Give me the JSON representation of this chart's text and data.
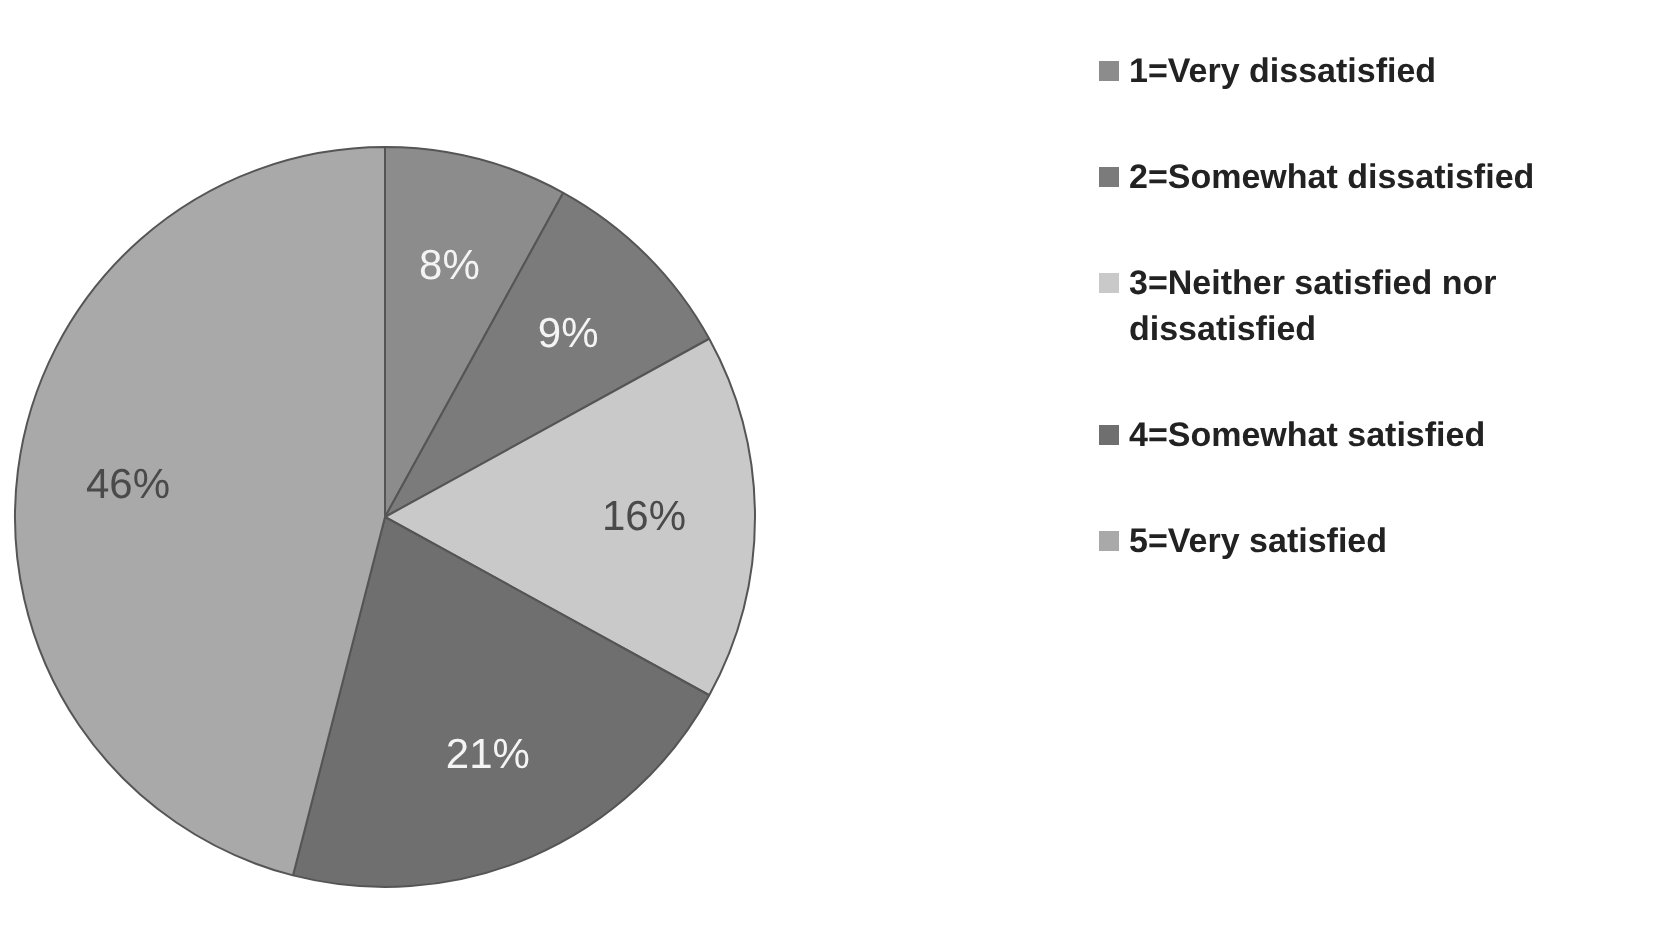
{
  "chart_data": {
    "type": "pie",
    "categories": [
      "1=Very dissatisfied",
      "2=Somewhat dissatisfied",
      "3=Neither satisfied nor dissatisfied",
      "4=Somewhat satisfied",
      "5=Very satisfied"
    ],
    "values": [
      8,
      9,
      16,
      21,
      46
    ],
    "colors": [
      "#8c8c8c",
      "#7b7b7b",
      "#c9c9c9",
      "#6f6f6f",
      "#a9a9a9"
    ],
    "value_labels": [
      "8%",
      "9%",
      "16%",
      "21%",
      "46%"
    ],
    "legend": "right"
  }
}
